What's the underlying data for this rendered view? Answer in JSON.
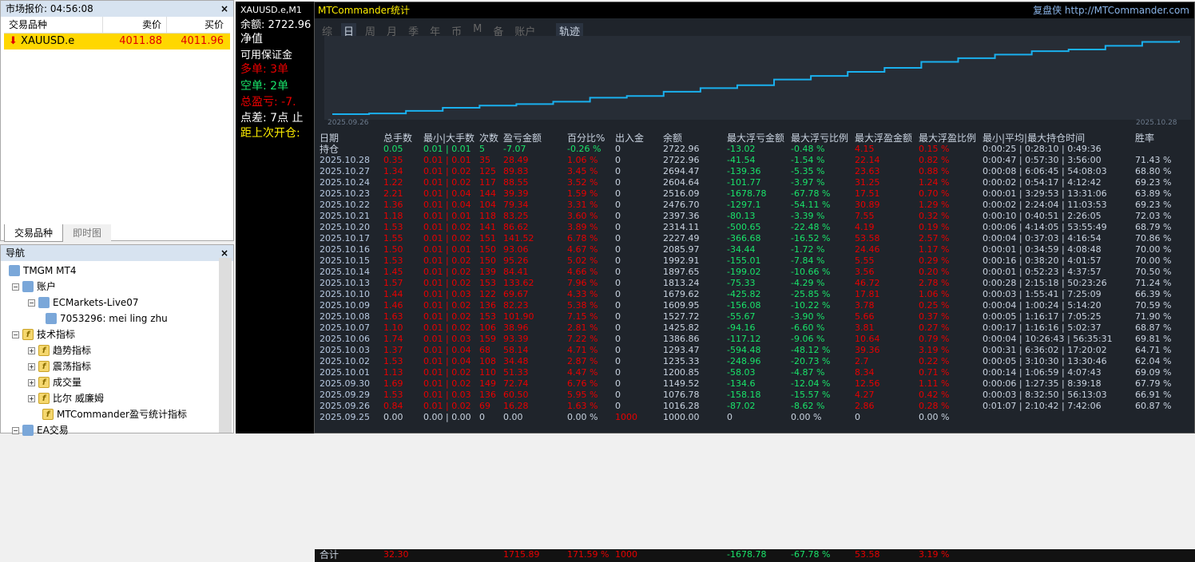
{
  "market_watch": {
    "title": "市场报价: 04:56:08",
    "close": "×",
    "col_symbol": "交易品种",
    "col_bid": "卖价",
    "col_ask": "买价",
    "rows": [
      {
        "symbol": "XAUUSD.e",
        "bid": "4011.88",
        "ask": "4011.96",
        "direction_icon": "down-arrow-icon"
      }
    ],
    "tabs": [
      "交易品种",
      "即时图"
    ]
  },
  "navigator": {
    "title": "导航",
    "close": "×",
    "items": [
      {
        "label": "TMGM MT4",
        "icon": "terminal-icon"
      },
      {
        "label": "账户",
        "icon": "accounts-icon"
      },
      {
        "label": "ECMarkets-Live07",
        "icon": "server-icon"
      },
      {
        "label": "7053296: mei ling zhu",
        "icon": "user-icon"
      },
      {
        "label": "技术指标",
        "icon": "indicator-icon"
      },
      {
        "label": "趋势指标",
        "icon": "indicator-icon"
      },
      {
        "label": "震荡指标",
        "icon": "indicator-icon"
      },
      {
        "label": "成交量",
        "icon": "indicator-icon"
      },
      {
        "label": "比尔 威廉姆",
        "icon": "indicator-icon"
      },
      {
        "label": "MTCommander盈亏统计指标",
        "icon": "custom-indicator-icon"
      },
      {
        "label": "EA交易",
        "icon": "expert-icon"
      }
    ]
  },
  "chart_window": {
    "title": "XAUUSD.e,M1",
    "lines": [
      "余额: 2722.96",
      "净值",
      "可用保证金",
      "多单: 3单",
      "空单: 2单",
      "总盈亏: -7.",
      "点差: 7点 止",
      "距上次开仓:"
    ]
  },
  "stats": {
    "title": "MTCommander统计",
    "brand": "复盘侠",
    "url": "http://MTCommander.com",
    "tabs": [
      "综",
      "日",
      "周",
      "月",
      "季",
      "年",
      "币",
      "M",
      "备",
      "账户"
    ],
    "active_tab": "日",
    "track_button": "轨迹",
    "equity_start": "2025.09.26",
    "equity_end": "2025.10.28",
    "line_color": "#1ab0ee",
    "headers": [
      "日期",
      "总手数",
      "最小|大手数",
      "次数",
      "盈亏金额",
      "百分比%",
      "出入金",
      "余额",
      "最大浮亏金额",
      "最大浮亏比例",
      "最大浮盈金额",
      "最大浮盈比例",
      "最小|平均|最大持仓时间",
      "胜率"
    ],
    "rows": [
      [
        "持仓",
        "0.05",
        "0.01 | 0.01",
        "5",
        "-7.07",
        "-0.26 %",
        "0",
        "2722.96",
        "-13.02",
        "-0.48 %",
        "4.15",
        "0.15 %",
        "0:00:25 | 0:28:10 | 0:49:36",
        ""
      ],
      [
        "2025.10.28",
        "0.35",
        "0.01 | 0.01",
        "35",
        "28.49",
        "1.06 %",
        "0",
        "2722.96",
        "-41.54",
        "-1.54 %",
        "22.14",
        "0.82 %",
        "0:00:47 | 0:57:30 | 3:56:00",
        "71.43 %"
      ],
      [
        "2025.10.27",
        "1.34",
        "0.01 | 0.02",
        "125",
        "89.83",
        "3.45 %",
        "0",
        "2694.47",
        "-139.36",
        "-5.35 %",
        "23.63",
        "0.88 %",
        "0:00:08 | 6:06:45 | 54:08:03",
        "68.80 %"
      ],
      [
        "2025.10.24",
        "1.22",
        "0.01 | 0.02",
        "117",
        "88.55",
        "3.52 %",
        "0",
        "2604.64",
        "-101.77",
        "-3.97 %",
        "31.25",
        "1.24 %",
        "0:00:02 | 0:54:17 | 4:12:42",
        "69.23 %"
      ],
      [
        "2025.10.23",
        "2.21",
        "0.01 | 0.04",
        "144",
        "39.39",
        "1.59 %",
        "0",
        "2516.09",
        "-1678.78",
        "-67.78 %",
        "17.51",
        "0.70 %",
        "0:00:01 | 3:29:53 | 13:31:06",
        "63.89 %"
      ],
      [
        "2025.10.22",
        "1.36",
        "0.01 | 0.04",
        "104",
        "79.34",
        "3.31 %",
        "0",
        "2476.70",
        "-1297.1",
        "-54.11 %",
        "30.89",
        "1.29 %",
        "0:00:02 | 2:24:04 | 11:03:53",
        "69.23 %"
      ],
      [
        "2025.10.21",
        "1.18",
        "0.01 | 0.01",
        "118",
        "83.25",
        "3.60 %",
        "0",
        "2397.36",
        "-80.13",
        "-3.39 %",
        "7.55",
        "0.32 %",
        "0:00:10 | 0:40:51 | 2:26:05",
        "72.03 %"
      ],
      [
        "2025.10.20",
        "1.53",
        "0.01 | 0.02",
        "141",
        "86.62",
        "3.89 %",
        "0",
        "2314.11",
        "-500.65",
        "-22.48 %",
        "4.19",
        "0.19 %",
        "0:00:06 | 4:14:05 | 53:55:49",
        "68.79 %"
      ],
      [
        "2025.10.17",
        "1.55",
        "0.01 | 0.02",
        "151",
        "141.52",
        "6.78 %",
        "0",
        "2227.49",
        "-366.68",
        "-16.52 %",
        "53.58",
        "2.57 %",
        "0:00:04 | 0:37:03 | 4:16:54",
        "70.86 %"
      ],
      [
        "2025.10.16",
        "1.50",
        "0.01 | 0.01",
        "150",
        "93.06",
        "4.67 %",
        "0",
        "2085.97",
        "-34.44",
        "-1.72 %",
        "24.46",
        "1.17 %",
        "0:00:01 | 0:34:59 | 4:08:48",
        "70.00 %"
      ],
      [
        "2025.10.15",
        "1.53",
        "0.01 | 0.02",
        "150",
        "95.26",
        "5.02 %",
        "0",
        "1992.91",
        "-155.01",
        "-7.84 %",
        "5.55",
        "0.29 %",
        "0:00:16 | 0:38:20 | 4:01:57",
        "70.00 %"
      ],
      [
        "2025.10.14",
        "1.45",
        "0.01 | 0.02",
        "139",
        "84.41",
        "4.66 %",
        "0",
        "1897.65",
        "-199.02",
        "-10.66 %",
        "3.56",
        "0.20 %",
        "0:00:01 | 0:52:23 | 4:37:57",
        "70.50 %"
      ],
      [
        "2025.10.13",
        "1.57",
        "0.01 | 0.02",
        "153",
        "133.62",
        "7.96 %",
        "0",
        "1813.24",
        "-75.33",
        "-4.29 %",
        "46.72",
        "2.78 %",
        "0:00:28 | 2:15:18 | 50:23:26",
        "71.24 %"
      ],
      [
        "2025.10.10",
        "1.44",
        "0.01 | 0.03",
        "122",
        "69.67",
        "4.33 %",
        "0",
        "1679.62",
        "-425.82",
        "-25.85 %",
        "17.81",
        "1.06 %",
        "0:00:03 | 1:55:41 | 7:25:09",
        "66.39 %"
      ],
      [
        "2025.10.09",
        "1.46",
        "0.01 | 0.02",
        "136",
        "82.23",
        "5.38 %",
        "0",
        "1609.95",
        "-156.08",
        "-10.22 %",
        "3.78",
        "0.25 %",
        "0:00:04 | 1:00:24 | 5:14:20",
        "70.59 %"
      ],
      [
        "2025.10.08",
        "1.63",
        "0.01 | 0.02",
        "153",
        "101.90",
        "7.15 %",
        "0",
        "1527.72",
        "-55.67",
        "-3.90 %",
        "5.66",
        "0.37 %",
        "0:00:05 | 1:16:17 | 7:05:25",
        "71.90 %"
      ],
      [
        "2025.10.07",
        "1.10",
        "0.01 | 0.02",
        "106",
        "38.96",
        "2.81 %",
        "0",
        "1425.82",
        "-94.16",
        "-6.60 %",
        "3.81",
        "0.27 %",
        "0:00:17 | 1:16:16 | 5:02:37",
        "68.87 %"
      ],
      [
        "2025.10.06",
        "1.74",
        "0.01 | 0.03",
        "159",
        "93.39",
        "7.22 %",
        "0",
        "1386.86",
        "-117.12",
        "-9.06 %",
        "10.64",
        "0.79 %",
        "0:00:04 | 10:26:43 | 56:35:31",
        "69.81 %"
      ],
      [
        "2025.10.03",
        "1.37",
        "0.01 | 0.04",
        "68",
        "58.14",
        "4.71 %",
        "0",
        "1293.47",
        "-594.48",
        "-48.12 %",
        "39.36",
        "3.19 %",
        "0:00:31 | 6:36:02 | 17:20:02",
        "64.71 %"
      ],
      [
        "2025.10.02",
        "1.53",
        "0.01 | 0.04",
        "108",
        "34.48",
        "2.87 %",
        "0",
        "1235.33",
        "-248.96",
        "-20.73 %",
        "2.7",
        "0.22 %",
        "0:00:05 | 3:10:30 | 13:30:46",
        "62.04 %"
      ],
      [
        "2025.10.01",
        "1.13",
        "0.01 | 0.02",
        "110",
        "51.33",
        "4.47 %",
        "0",
        "1200.85",
        "-58.03",
        "-4.87 %",
        "8.34",
        "0.71 %",
        "0:00:14 | 1:06:59 | 4:07:43",
        "69.09 %"
      ],
      [
        "2025.09.30",
        "1.69",
        "0.01 | 0.02",
        "149",
        "72.74",
        "6.76 %",
        "0",
        "1149.52",
        "-134.6",
        "-12.04 %",
        "12.56",
        "1.11 %",
        "0:00:06 | 1:27:35 | 8:39:18",
        "67.79 %"
      ],
      [
        "2025.09.29",
        "1.53",
        "0.01 | 0.03",
        "136",
        "60.50",
        "5.95 %",
        "0",
        "1076.78",
        "-158.18",
        "-15.57 %",
        "4.27",
        "0.42 %",
        "0:00:03 | 8:32:50 | 56:13:03",
        "66.91 %"
      ],
      [
        "2025.09.26",
        "0.84",
        "0.01 | 0.02",
        "69",
        "16.28",
        "1.63 %",
        "0",
        "1016.28",
        "-87.02",
        "-8.62 %",
        "2.86",
        "0.28 %",
        "0:01:07 | 2:10:42 | 7:42:06",
        "60.87 %"
      ],
      [
        "2025.09.25",
        "0.00",
        "0.00 | 0.00",
        "0",
        "0.00",
        "0.00 %",
        "1000",
        "1000.00",
        "0",
        "0.00 %",
        "0",
        "0.00 %",
        "",
        ""
      ]
    ],
    "total": [
      "合计",
      "32.30",
      "",
      "",
      "1715.89",
      "171.59 %",
      "1000",
      "",
      "-1678.78",
      "-67.78 %",
      "53.58",
      "3.19 %",
      "",
      ""
    ]
  }
}
